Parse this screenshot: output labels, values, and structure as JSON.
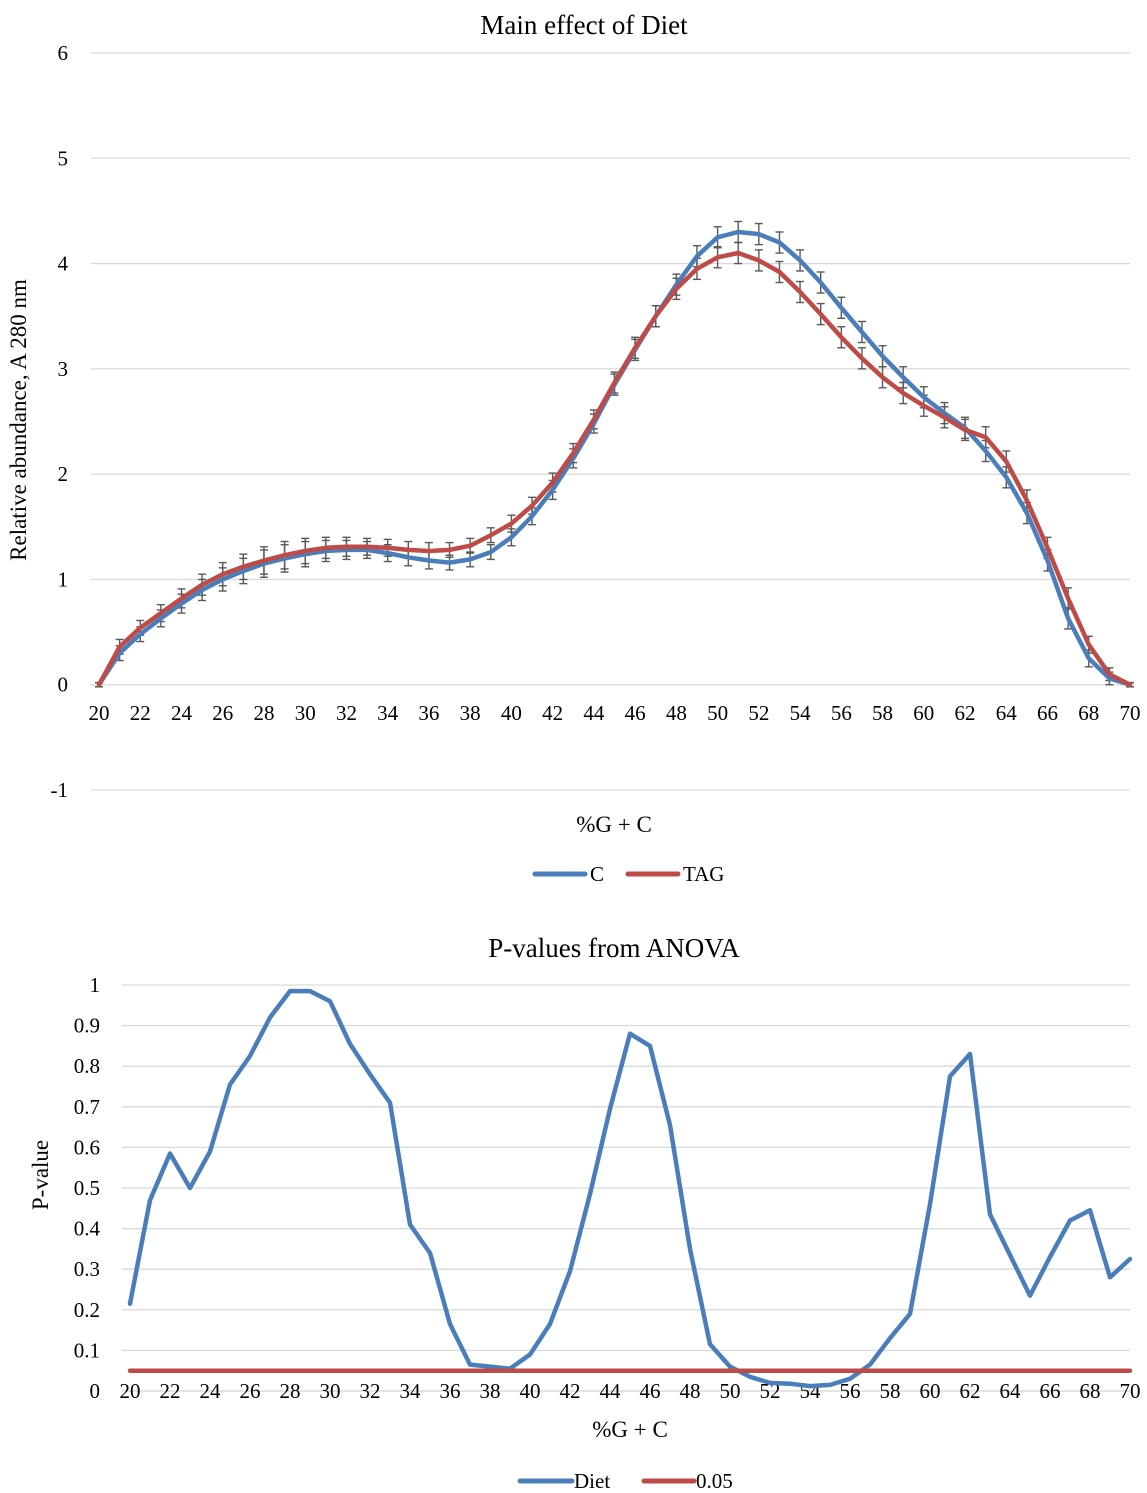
{
  "colors": {
    "c": "#4a7ebb",
    "tag": "#be4b48",
    "grid": "#d9d9d9",
    "errorbar": "#595959"
  },
  "charts": [
    {
      "type": "line",
      "title": "Main effect of Diet",
      "xlabel": "%G + C",
      "ylabel": "Relative abundance, A 280 nm",
      "ylim": [
        -1,
        6
      ],
      "yticks": [
        -1,
        0,
        1,
        2,
        3,
        4,
        5,
        6
      ],
      "x": [
        20,
        21,
        22,
        23,
        24,
        25,
        26,
        27,
        28,
        29,
        30,
        31,
        32,
        33,
        34,
        35,
        36,
        37,
        38,
        39,
        40,
        41,
        42,
        43,
        44,
        45,
        46,
        47,
        48,
        49,
        50,
        51,
        52,
        53,
        54,
        55,
        56,
        57,
        58,
        59,
        60,
        61,
        62,
        63,
        64,
        65,
        66,
        67,
        68,
        69,
        70
      ],
      "xtick_labels": [
        "20",
        "22",
        "24",
        "26",
        "28",
        "30",
        "32",
        "34",
        "36",
        "38",
        "40",
        "42",
        "44",
        "46",
        "48",
        "50",
        "52",
        "54",
        "56",
        "58",
        "60",
        "62",
        "64",
        "66",
        "68",
        "70"
      ],
      "x_axis_at": 0,
      "grid": true,
      "legend": "bottom",
      "series": [
        {
          "name": "C",
          "color": "#4a7ebb",
          "values": [
            0,
            0.3,
            0.48,
            0.63,
            0.77,
            0.9,
            1.0,
            1.08,
            1.15,
            1.2,
            1.24,
            1.27,
            1.28,
            1.28,
            1.25,
            1.21,
            1.18,
            1.16,
            1.19,
            1.26,
            1.4,
            1.6,
            1.85,
            2.15,
            2.48,
            2.85,
            3.18,
            3.5,
            3.8,
            4.07,
            4.25,
            4.3,
            4.28,
            4.2,
            4.03,
            3.82,
            3.58,
            3.35,
            3.12,
            2.92,
            2.73,
            2.58,
            2.44,
            2.22,
            1.97,
            1.63,
            1.18,
            0.63,
            0.25,
            0.06,
            0
          ],
          "errors": [
            0.02,
            0.07,
            0.07,
            0.08,
            0.09,
            0.1,
            0.11,
            0.12,
            0.13,
            0.13,
            0.12,
            0.1,
            0.09,
            0.08,
            0.08,
            0.08,
            0.08,
            0.07,
            0.07,
            0.07,
            0.08,
            0.08,
            0.09,
            0.09,
            0.09,
            0.1,
            0.1,
            0.1,
            0.1,
            0.1,
            0.1,
            0.1,
            0.1,
            0.1,
            0.1,
            0.1,
            0.1,
            0.1,
            0.1,
            0.1,
            0.1,
            0.1,
            0.1,
            0.1,
            0.1,
            0.1,
            0.1,
            0.1,
            0.08,
            0.06,
            0.02
          ]
        },
        {
          "name": "TAG",
          "color": "#be4b48",
          "values": [
            0,
            0.36,
            0.54,
            0.68,
            0.82,
            0.95,
            1.05,
            1.12,
            1.18,
            1.23,
            1.27,
            1.3,
            1.31,
            1.31,
            1.3,
            1.28,
            1.27,
            1.28,
            1.32,
            1.42,
            1.53,
            1.7,
            1.92,
            2.2,
            2.52,
            2.87,
            3.2,
            3.5,
            3.76,
            3.95,
            4.06,
            4.1,
            4.03,
            3.92,
            3.73,
            3.52,
            3.3,
            3.1,
            2.92,
            2.77,
            2.65,
            2.54,
            2.42,
            2.35,
            2.12,
            1.75,
            1.3,
            0.82,
            0.38,
            0.1,
            0
          ],
          "errors": [
            0.02,
            0.07,
            0.07,
            0.08,
            0.09,
            0.1,
            0.11,
            0.12,
            0.13,
            0.13,
            0.12,
            0.1,
            0.09,
            0.08,
            0.08,
            0.08,
            0.08,
            0.07,
            0.07,
            0.07,
            0.08,
            0.08,
            0.09,
            0.09,
            0.09,
            0.1,
            0.1,
            0.1,
            0.1,
            0.1,
            0.1,
            0.1,
            0.1,
            0.1,
            0.1,
            0.1,
            0.1,
            0.1,
            0.1,
            0.1,
            0.1,
            0.1,
            0.1,
            0.1,
            0.1,
            0.1,
            0.1,
            0.1,
            0.08,
            0.06,
            0.02
          ]
        }
      ]
    },
    {
      "type": "line",
      "title": "P-values from ANOVA",
      "xlabel": "%G + C",
      "ylabel": "P-value",
      "ylim": [
        0,
        1
      ],
      "yticks": [
        0,
        0.1,
        0.2,
        0.3,
        0.4,
        0.5,
        0.6,
        0.7,
        0.8,
        0.9,
        1
      ],
      "x": [
        20,
        21,
        22,
        23,
        24,
        25,
        26,
        27,
        28,
        29,
        30,
        31,
        32,
        33,
        34,
        35,
        36,
        37,
        38,
        39,
        40,
        41,
        42,
        43,
        44,
        45,
        46,
        47,
        48,
        49,
        50,
        51,
        52,
        53,
        54,
        55,
        56,
        57,
        58,
        59,
        60,
        61,
        62,
        63,
        64,
        65,
        66,
        67,
        68,
        69,
        70
      ],
      "xtick_labels": [
        "20",
        "22",
        "24",
        "26",
        "28",
        "30",
        "32",
        "34",
        "36",
        "38",
        "40",
        "42",
        "44",
        "46",
        "48",
        "50",
        "52",
        "54",
        "56",
        "58",
        "60",
        "62",
        "64",
        "66",
        "68",
        "70"
      ],
      "grid": true,
      "legend": "bottom",
      "series": [
        {
          "name": "Diet",
          "color": "#4a7ebb",
          "values": [
            0.215,
            0.47,
            0.585,
            0.5,
            0.59,
            0.755,
            0.825,
            0.92,
            0.985,
            0.985,
            0.96,
            0.855,
            0.78,
            0.71,
            0.41,
            0.34,
            0.165,
            0.065,
            0.06,
            0.055,
            0.09,
            0.165,
            0.295,
            0.485,
            0.695,
            0.88,
            0.85,
            0.655,
            0.35,
            0.115,
            0.06,
            0.035,
            0.02,
            0.018,
            0.012,
            0.015,
            0.03,
            0.065,
            0.13,
            0.19,
            0.46,
            0.775,
            0.83,
            0.435,
            0.335,
            0.235,
            0.33,
            0.42,
            0.445,
            0.28,
            0.325
          ]
        },
        {
          "name": "0.05",
          "color": "#be4b48",
          "values": [
            0.05,
            0.05,
            0.05,
            0.05,
            0.05,
            0.05,
            0.05,
            0.05,
            0.05,
            0.05,
            0.05,
            0.05,
            0.05,
            0.05,
            0.05,
            0.05,
            0.05,
            0.05,
            0.05,
            0.05,
            0.05,
            0.05,
            0.05,
            0.05,
            0.05,
            0.05,
            0.05,
            0.05,
            0.05,
            0.05,
            0.05,
            0.05,
            0.05,
            0.05,
            0.05,
            0.05,
            0.05,
            0.05,
            0.05,
            0.05,
            0.05,
            0.05,
            0.05,
            0.05,
            0.05,
            0.05,
            0.05,
            0.05,
            0.05,
            0.05,
            0.05
          ]
        }
      ]
    }
  ]
}
